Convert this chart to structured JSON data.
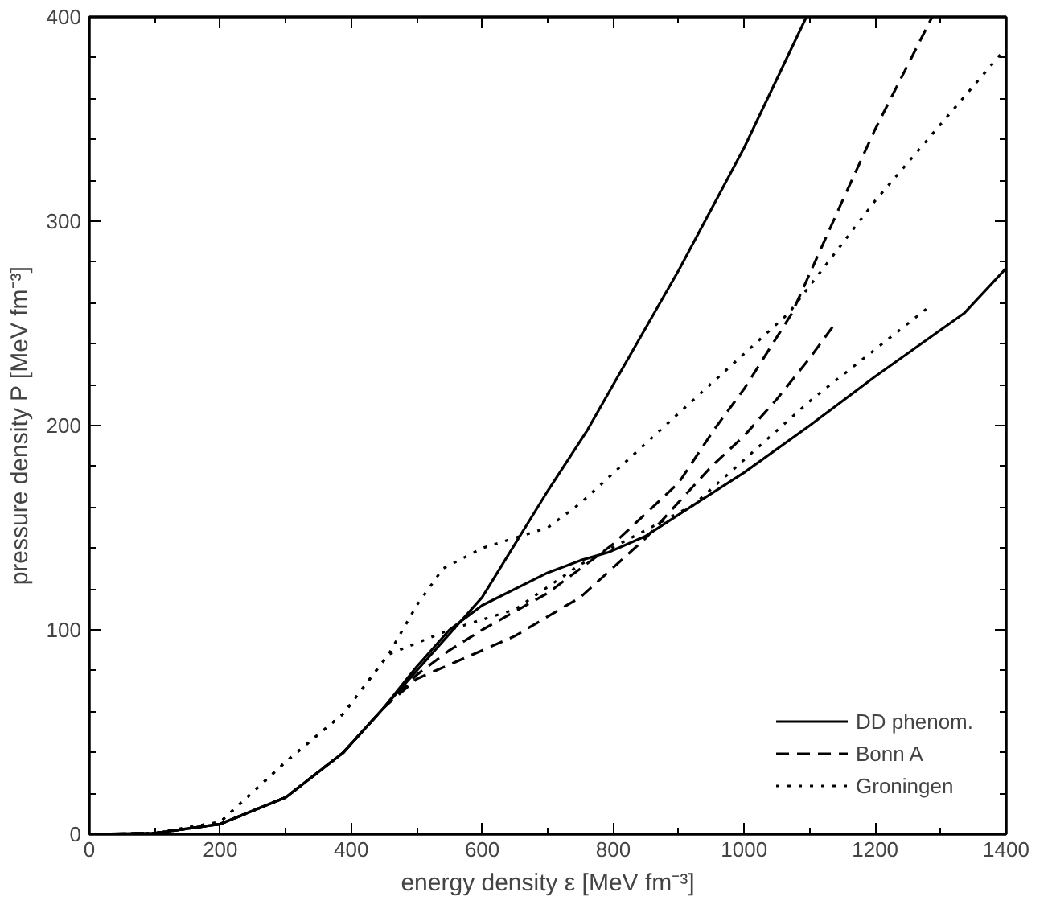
{
  "chart_data": {
    "type": "line",
    "xlabel": "energy density ε [MeV fm⁻³]",
    "ylabel": "pressure density P [MeV fm⁻³]",
    "xlim": [
      0,
      1400
    ],
    "ylim": [
      0,
      400
    ],
    "xticks": [
      0,
      200,
      400,
      600,
      800,
      1000,
      1200,
      1400
    ],
    "yticks": [
      0,
      100,
      200,
      300,
      400
    ],
    "grid": false,
    "legend": "bottom right",
    "marker": "none",
    "series": [
      {
        "name": "DD phenom.",
        "color": "#000000",
        "line_style": "solid",
        "x": [
          0,
          100,
          200,
          300,
          388,
          450,
          500,
          600,
          700,
          761,
          800,
          900,
          1000,
          1095
        ],
        "values": [
          0,
          0.5,
          5,
          18,
          40,
          62,
          80,
          116,
          168,
          198,
          220,
          276,
          336,
          400
        ]
      },
      {
        "color": "#000000",
        "line_style": "solid",
        "x": [
          0,
          100,
          200,
          300,
          388,
          450,
          500,
          550,
          600,
          700,
          750,
          793,
          850,
          922,
          1000,
          1100,
          1200,
          1336,
          1400
        ],
        "values": [
          0,
          0.5,
          5,
          18,
          40,
          62,
          82,
          100,
          112,
          128,
          134,
          138,
          146,
          161,
          177,
          200,
          224,
          255,
          277
        ]
      },
      {
        "name": "Bonn A",
        "color": "#000000",
        "line_style": "dashed",
        "x": [
          0,
          100,
          200,
          300,
          388,
          450,
          500,
          550,
          600,
          700,
          750,
          800,
          900,
          954,
          1000,
          1073,
          1150,
          1200,
          1287
        ],
        "values": [
          0,
          0.5,
          5,
          18,
          40,
          62,
          78,
          90,
          100,
          118,
          130,
          142,
          172,
          198,
          218,
          255,
          310,
          345,
          400
        ]
      },
      {
        "color": "#000000",
        "line_style": "dashed",
        "x": [
          0,
          100,
          200,
          300,
          388,
          450,
          500,
          586,
          650,
          750,
          850,
          950,
          1000,
          1050,
          1100,
          1139
        ],
        "values": [
          0,
          0.5,
          5,
          18,
          40,
          62,
          76,
          88,
          97,
          116,
          145,
          180,
          195,
          213,
          233,
          250
        ]
      },
      {
        "name": "Groningen",
        "color": "#000000",
        "line_style": "dotted",
        "x": [
          0,
          100,
          200,
          302,
          388,
          457,
          500,
          540,
          600,
          700,
          750,
          900,
          1068,
          1200,
          1395
        ],
        "values": [
          0,
          0.5,
          6,
          36,
          59,
          88,
          112,
          130,
          140,
          150,
          162,
          206,
          255,
          310,
          383
        ]
      },
      {
        "color": "#000000",
        "line_style": "dotted",
        "x": [
          0,
          100,
          200,
          302,
          388,
          457,
          550,
          650,
          750,
          922,
          1104,
          1278
        ],
        "values": [
          0,
          0.5,
          6,
          36,
          59,
          88,
          100,
          110,
          132,
          161,
          213,
          257
        ]
      }
    ]
  }
}
